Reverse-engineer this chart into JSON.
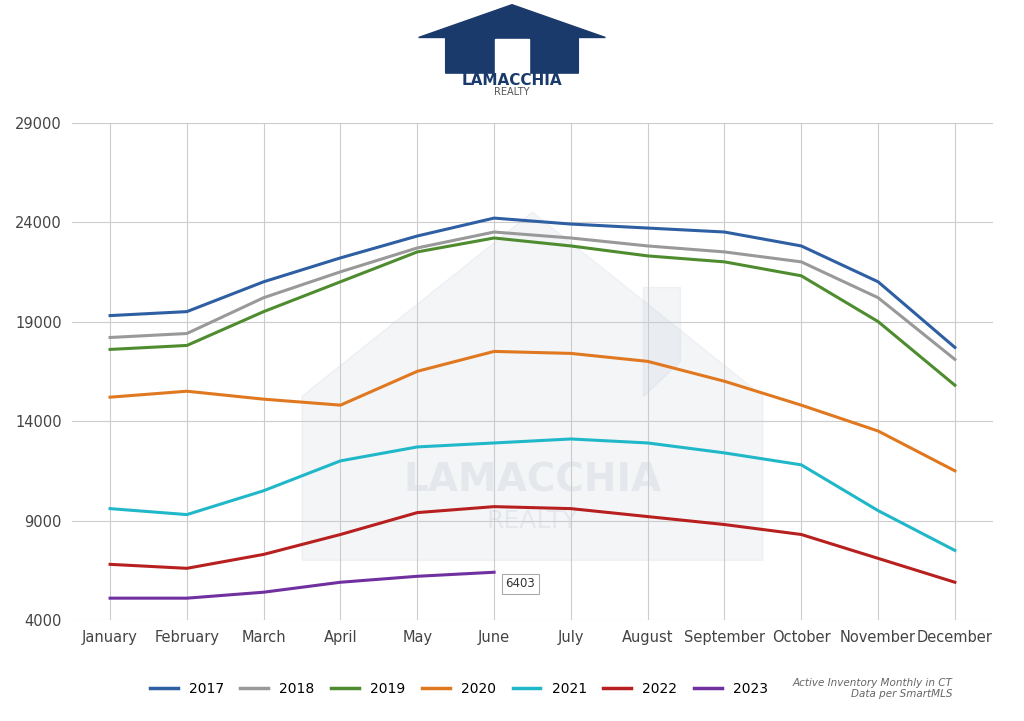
{
  "months": [
    "January",
    "February",
    "March",
    "April",
    "May",
    "June",
    "July",
    "August",
    "September",
    "October",
    "November",
    "December"
  ],
  "series": {
    "2017": [
      19300,
      19500,
      21000,
      22200,
      23300,
      24200,
      23900,
      23700,
      23500,
      22800,
      21000,
      17700
    ],
    "2018": [
      18200,
      18400,
      20200,
      21500,
      22700,
      23500,
      23200,
      22800,
      22500,
      22000,
      20200,
      17100
    ],
    "2019": [
      17600,
      17800,
      19500,
      21000,
      22500,
      23200,
      22800,
      22300,
      22000,
      21300,
      19000,
      15800
    ],
    "2020": [
      15200,
      15500,
      15100,
      14800,
      16500,
      17500,
      17400,
      17000,
      16000,
      14800,
      13500,
      11500
    ],
    "2021": [
      9600,
      9300,
      10500,
      12000,
      12700,
      12900,
      13100,
      12900,
      12400,
      11800,
      9500,
      7500
    ],
    "2022": [
      6800,
      6600,
      7300,
      8300,
      9400,
      9700,
      9600,
      9200,
      8800,
      8300,
      7100,
      5900
    ],
    "2023": [
      5100,
      5100,
      5400,
      5900,
      6200,
      6403,
      null,
      null,
      null,
      null,
      null,
      null
    ]
  },
  "colors": {
    "2017": "#2E5FA3",
    "2018": "#999999",
    "2019": "#4E8C2F",
    "2020": "#E07820",
    "2021": "#20B8C8",
    "2022": "#B82020",
    "2023": "#7030A0"
  },
  "ylim": [
    4000,
    29000
  ],
  "yticks": [
    4000,
    9000,
    14000,
    19000,
    24000,
    29000
  ],
  "annotation_month": 5,
  "annotation_value": 6403,
  "annotation_text": "6403",
  "line_width": 2.2,
  "background_color": "#FFFFFF",
  "footer_text": "Active Inventory Monthly in CT\nData per SmartMLS"
}
